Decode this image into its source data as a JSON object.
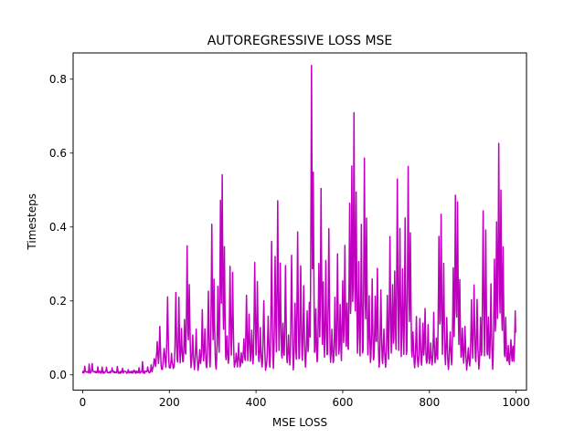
{
  "chart_data": {
    "type": "line",
    "title": "AUTOREGRESSIVE LOSS MSE",
    "xlabel": "MSE LOSS",
    "ylabel": "Timesteps",
    "xlim": [
      -22,
      1024
    ],
    "ylim": [
      -0.0415,
      0.871
    ],
    "xticks": [
      0,
      200,
      400,
      600,
      800,
      1000
    ],
    "xtick_labels": [
      "0",
      "200",
      "400",
      "600",
      "800",
      "1000"
    ],
    "yticks": [
      0.0,
      0.2,
      0.4,
      0.6,
      0.8
    ],
    "ytick_labels": [
      "0.0",
      "0.2",
      "0.4",
      "0.6",
      "0.8"
    ],
    "grid": false,
    "series": [
      {
        "color": "#bf00bf",
        "x_start": 0,
        "x_end": 999,
        "peaks": [
          [
            5,
            0.02
          ],
          [
            15,
            0.025
          ],
          [
            22,
            0.03
          ],
          [
            35,
            0.02
          ],
          [
            45,
            0.018
          ],
          [
            55,
            0.02
          ],
          [
            68,
            0.015
          ],
          [
            80,
            0.018
          ],
          [
            92,
            0.015
          ],
          [
            105,
            0.014
          ],
          [
            118,
            0.012
          ],
          [
            130,
            0.018
          ],
          [
            138,
            0.035
          ],
          [
            150,
            0.02
          ],
          [
            158,
            0.025
          ],
          [
            165,
            0.04
          ],
          [
            172,
            0.09
          ],
          [
            178,
            0.13
          ],
          [
            188,
            0.08
          ],
          [
            196,
            0.22
          ],
          [
            205,
            0.05
          ],
          [
            215,
            0.23
          ],
          [
            222,
            0.2
          ],
          [
            228,
            0.12
          ],
          [
            235,
            0.15
          ],
          [
            241,
            0.34
          ],
          [
            246,
            0.25
          ],
          [
            254,
            0.1
          ],
          [
            262,
            0.12
          ],
          [
            270,
            0.06
          ],
          [
            276,
            0.17
          ],
          [
            282,
            0.12
          ],
          [
            290,
            0.22
          ],
          [
            298,
            0.4
          ],
          [
            303,
            0.25
          ],
          [
            312,
            0.24
          ],
          [
            318,
            0.47
          ],
          [
            322,
            0.55
          ],
          [
            327,
            0.35
          ],
          [
            333,
            0.1
          ],
          [
            340,
            0.3
          ],
          [
            346,
            0.27
          ],
          [
            354,
            0.05
          ],
          [
            360,
            0.08
          ],
          [
            366,
            0.05
          ],
          [
            372,
            0.1
          ],
          [
            378,
            0.22
          ],
          [
            384,
            0.17
          ],
          [
            390,
            0.13
          ],
          [
            397,
            0.31
          ],
          [
            403,
            0.25
          ],
          [
            410,
            0.12
          ],
          [
            418,
            0.21
          ],
          [
            428,
            0.16
          ],
          [
            436,
            0.37
          ],
          [
            444,
            0.32
          ],
          [
            450,
            0.48
          ],
          [
            456,
            0.3
          ],
          [
            462,
            0.14
          ],
          [
            468,
            0.3
          ],
          [
            475,
            0.1
          ],
          [
            482,
            0.33
          ],
          [
            490,
            0.2
          ],
          [
            496,
            0.38
          ],
          [
            503,
            0.3
          ],
          [
            510,
            0.24
          ],
          [
            518,
            0.17
          ],
          [
            523,
            0.2
          ],
          [
            528,
            0.83
          ],
          [
            532,
            0.55
          ],
          [
            538,
            0.18
          ],
          [
            545,
            0.3
          ],
          [
            550,
            0.51
          ],
          [
            555,
            0.25
          ],
          [
            561,
            0.3
          ],
          [
            568,
            0.4
          ],
          [
            575,
            0.12
          ],
          [
            582,
            0.21
          ],
          [
            588,
            0.32
          ],
          [
            594,
            0.2
          ],
          [
            600,
            0.25
          ],
          [
            605,
            0.35
          ],
          [
            610,
            0.2
          ],
          [
            616,
            0.47
          ],
          [
            621,
            0.57
          ],
          [
            626,
            0.7
          ],
          [
            631,
            0.5
          ],
          [
            637,
            0.3
          ],
          [
            643,
            0.4
          ],
          [
            650,
            0.58
          ],
          [
            655,
            0.42
          ],
          [
            661,
            0.21
          ],
          [
            668,
            0.25
          ],
          [
            675,
            0.22
          ],
          [
            680,
            0.28
          ],
          [
            688,
            0.23
          ],
          [
            695,
            0.12
          ],
          [
            703,
            0.21
          ],
          [
            709,
            0.37
          ],
          [
            715,
            0.25
          ],
          [
            720,
            0.29
          ],
          [
            726,
            0.53
          ],
          [
            732,
            0.39
          ],
          [
            738,
            0.28
          ],
          [
            744,
            0.42
          ],
          [
            751,
            0.57
          ],
          [
            756,
            0.39
          ],
          [
            762,
            0.12
          ],
          [
            770,
            0.15
          ],
          [
            778,
            0.16
          ],
          [
            785,
            0.14
          ],
          [
            790,
            0.17
          ],
          [
            797,
            0.13
          ],
          [
            803,
            0.08
          ],
          [
            810,
            0.16
          ],
          [
            816,
            0.1
          ],
          [
            822,
            0.38
          ],
          [
            827,
            0.43
          ],
          [
            833,
            0.3
          ],
          [
            840,
            0.15
          ],
          [
            848,
            0.12
          ],
          [
            855,
            0.28
          ],
          [
            860,
            0.48
          ],
          [
            865,
            0.46
          ],
          [
            870,
            0.25
          ],
          [
            876,
            0.12
          ],
          [
            882,
            0.14
          ],
          [
            890,
            0.08
          ],
          [
            897,
            0.2
          ],
          [
            903,
            0.25
          ],
          [
            910,
            0.21
          ],
          [
            918,
            0.15
          ],
          [
            924,
            0.44
          ],
          [
            930,
            0.4
          ],
          [
            936,
            0.16
          ],
          [
            942,
            0.24
          ],
          [
            950,
            0.32
          ],
          [
            955,
            0.41
          ],
          [
            960,
            0.63
          ],
          [
            965,
            0.5
          ],
          [
            970,
            0.34
          ],
          [
            976,
            0.15
          ],
          [
            982,
            0.07
          ],
          [
            988,
            0.1
          ],
          [
            993,
            0.08
          ],
          [
            998,
            0.17
          ]
        ]
      }
    ]
  }
}
